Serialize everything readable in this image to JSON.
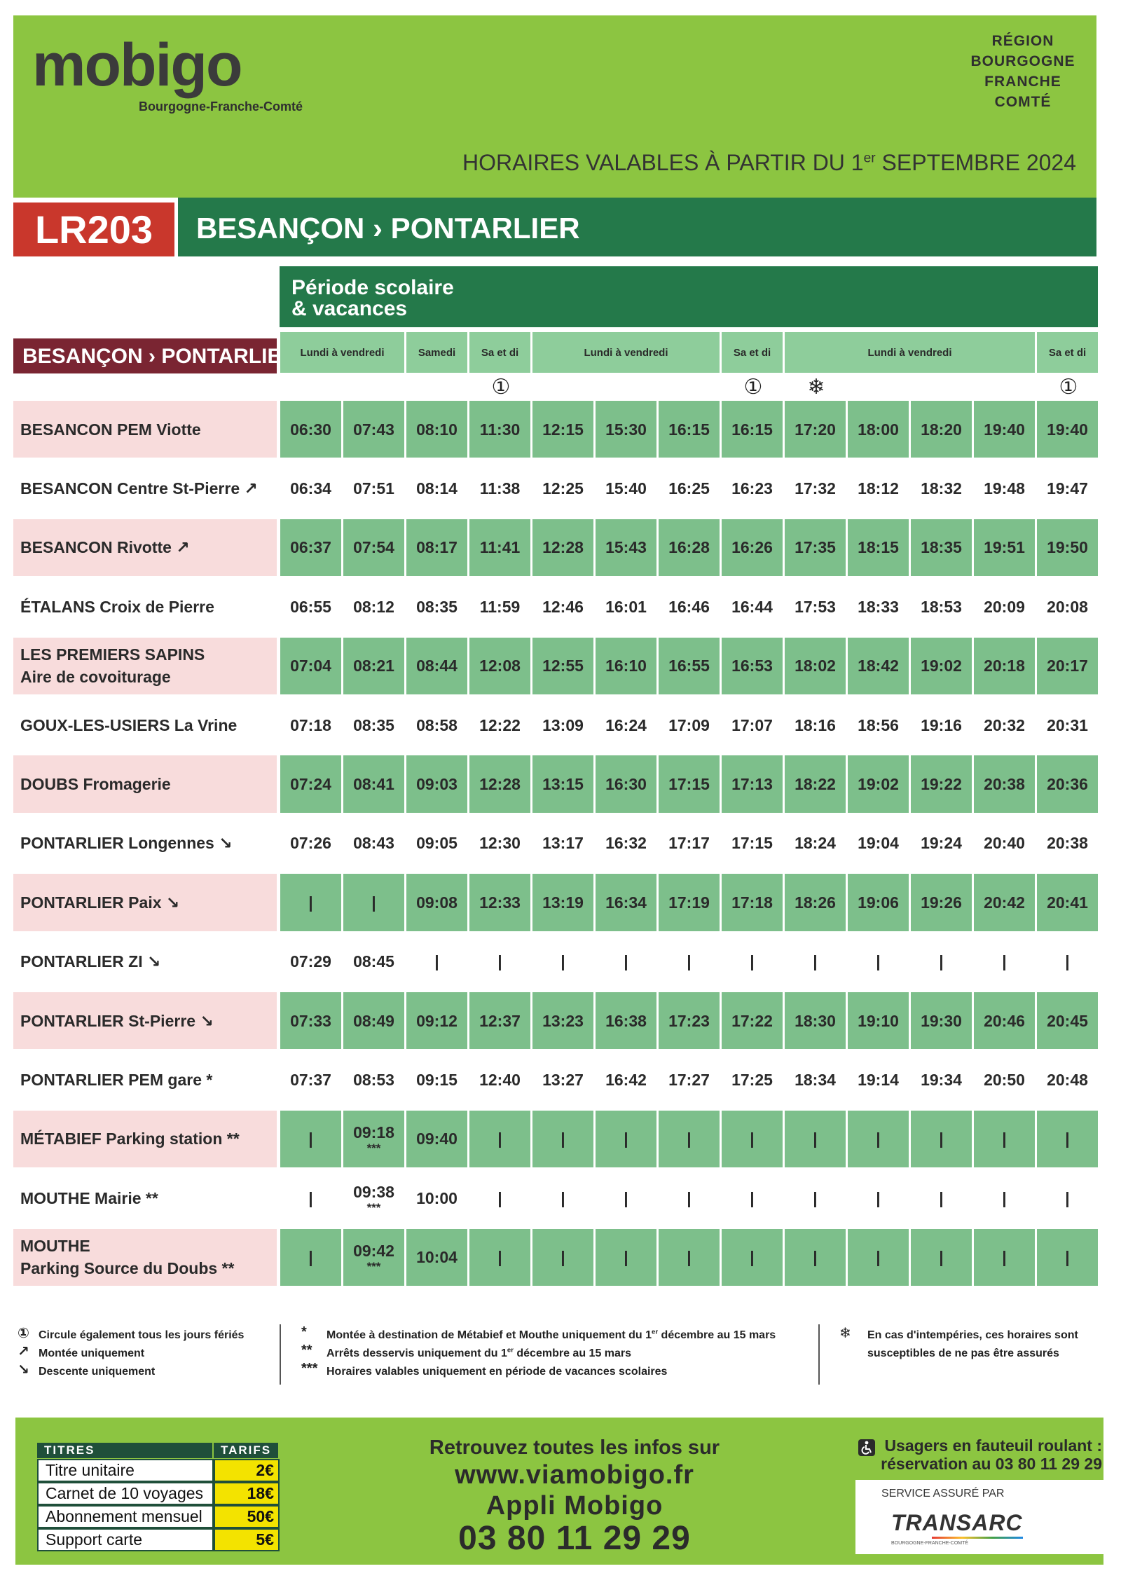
{
  "header": {
    "logo": "mobigo",
    "logo_subtitle": "Bourgogne-Franche-Comté",
    "region": [
      "RÉGION",
      "BOURGOGNE",
      "FRANCHE",
      "COMTÉ"
    ],
    "validity": [
      "HORAIRES VALABLES À PARTIR DU 1",
      {
        "sup": "er"
      },
      " SEPTEMBRE 2024"
    ]
  },
  "line": {
    "code": "LR203",
    "title": "BESANÇON › PONTARLIER"
  },
  "timetable": {
    "period": [
      "Période scolaire",
      "& vacances"
    ],
    "direction": "BESANÇON › PONTARLIER",
    "day_groups": [
      {
        "label": "Lundi à vendredi",
        "span": 2
      },
      {
        "label": "Samedi",
        "span": 1
      },
      {
        "label": "Sa et di",
        "span": 1
      },
      {
        "label": "Lundi à vendredi",
        "span": 3
      },
      {
        "label": "Sa et di",
        "span": 1
      },
      {
        "label": "Lundi à vendredi",
        "span": 4
      },
      {
        "label": "Sa et di",
        "span": 1
      }
    ],
    "column_notes": [
      null,
      null,
      null,
      "①",
      null,
      null,
      null,
      "①",
      "❄",
      null,
      null,
      null,
      "①"
    ],
    "stops": [
      {
        "name": [
          "BESANCON PEM Viotte"
        ],
        "times": [
          "06:30",
          "07:43",
          "08:10",
          "11:30",
          "12:15",
          "15:30",
          "16:15",
          "16:15",
          "17:20",
          "18:00",
          "18:20",
          "19:40",
          "19:40"
        ]
      },
      {
        "name": [
          "BESANCON Centre St-Pierre ↗"
        ],
        "times": [
          "06:34",
          "07:51",
          "08:14",
          "11:38",
          "12:25",
          "15:40",
          "16:25",
          "16:23",
          "17:32",
          "18:12",
          "18:32",
          "19:48",
          "19:47"
        ]
      },
      {
        "name": [
          "BESANCON Rivotte ↗"
        ],
        "times": [
          "06:37",
          "07:54",
          "08:17",
          "11:41",
          "12:28",
          "15:43",
          "16:28",
          "16:26",
          "17:35",
          "18:15",
          "18:35",
          "19:51",
          "19:50"
        ]
      },
      {
        "name": [
          "ÉTALANS Croix de Pierre"
        ],
        "times": [
          "06:55",
          "08:12",
          "08:35",
          "11:59",
          "12:46",
          "16:01",
          "16:46",
          "16:44",
          "17:53",
          "18:33",
          "18:53",
          "20:09",
          "20:08"
        ]
      },
      {
        "name": [
          "LES PREMIERS SAPINS",
          "Aire de covoiturage"
        ],
        "times": [
          "07:04",
          "08:21",
          "08:44",
          "12:08",
          "12:55",
          "16:10",
          "16:55",
          "16:53",
          "18:02",
          "18:42",
          "19:02",
          "20:18",
          "20:17"
        ]
      },
      {
        "name": [
          "GOUX-LES-USIERS La Vrine"
        ],
        "times": [
          "07:18",
          "08:35",
          "08:58",
          "12:22",
          "13:09",
          "16:24",
          "17:09",
          "17:07",
          "18:16",
          "18:56",
          "19:16",
          "20:32",
          "20:31"
        ]
      },
      {
        "name": [
          "DOUBS Fromagerie"
        ],
        "times": [
          "07:24",
          "08:41",
          "09:03",
          "12:28",
          "13:15",
          "16:30",
          "17:15",
          "17:13",
          "18:22",
          "19:02",
          "19:22",
          "20:38",
          "20:36"
        ]
      },
      {
        "name": [
          "PONTARLIER Longennes ↘"
        ],
        "times": [
          "07:26",
          "08:43",
          "09:05",
          "12:30",
          "13:17",
          "16:32",
          "17:17",
          "17:15",
          "18:24",
          "19:04",
          "19:24",
          "20:40",
          "20:38"
        ]
      },
      {
        "name": [
          "PONTARLIER Paix ↘"
        ],
        "times": [
          "|",
          "|",
          "09:08",
          "12:33",
          "13:19",
          "16:34",
          "17:19",
          "17:18",
          "18:26",
          "19:06",
          "19:26",
          "20:42",
          "20:41"
        ]
      },
      {
        "name": [
          "PONTARLIER ZI ↘"
        ],
        "times": [
          "07:29",
          "08:45",
          "|",
          "|",
          "|",
          "|",
          "|",
          "|",
          "|",
          "|",
          "|",
          "|",
          "|"
        ]
      },
      {
        "name": [
          "PONTARLIER St-Pierre ↘"
        ],
        "times": [
          "07:33",
          "08:49",
          "09:12",
          "12:37",
          "13:23",
          "16:38",
          "17:23",
          "17:22",
          "18:30",
          "19:10",
          "19:30",
          "20:46",
          "20:45"
        ]
      },
      {
        "name": [
          "PONTARLIER PEM gare *"
        ],
        "times": [
          "07:37",
          "08:53",
          "09:15",
          "12:40",
          "13:27",
          "16:42",
          "17:27",
          "17:25",
          "18:34",
          "19:14",
          "19:34",
          "20:50",
          "20:48"
        ]
      },
      {
        "name": [
          "MÉTABIEF Parking station **"
        ],
        "times": [
          "|",
          {
            "time": "09:18",
            "note": "***"
          },
          "09:40",
          "|",
          "|",
          "|",
          "|",
          "|",
          "|",
          "|",
          "|",
          "|",
          "|"
        ]
      },
      {
        "name": [
          "MOUTHE Mairie **"
        ],
        "times": [
          "|",
          {
            "time": "09:38",
            "note": "***"
          },
          "10:00",
          "|",
          "|",
          "|",
          "|",
          "|",
          "|",
          "|",
          "|",
          "|",
          "|"
        ]
      },
      {
        "name": [
          "MOUTHE",
          "Parking Source du Doubs **"
        ],
        "times": [
          "|",
          {
            "time": "09:42",
            "note": "***"
          },
          "10:04",
          "|",
          "|",
          "|",
          "|",
          "|",
          "|",
          "|",
          "|",
          "|",
          "|"
        ]
      }
    ]
  },
  "legend": [
    [
      {
        "symbol": "①",
        "text": [
          "Circule également tous les jours fériés"
        ]
      },
      {
        "symbol": "↗",
        "text": [
          "Montée uniquement"
        ]
      },
      {
        "symbol": "↘",
        "text": [
          "Descente uniquement"
        ]
      }
    ],
    [
      {
        "symbol": "*",
        "text": [
          "Montée à destination de Métabief et Mouthe uniquement du 1",
          {
            "sup": "er"
          },
          " décembre au 15 mars"
        ]
      },
      {
        "symbol": "**",
        "text": [
          "Arrêts desservis uniquement du 1",
          {
            "sup": "er"
          },
          " décembre au 15 mars"
        ]
      },
      {
        "symbol": "***",
        "text": [
          "Horaires valables uniquement en période de vacances scolaires"
        ]
      }
    ],
    [
      {
        "symbol": "❄",
        "text": [
          "En cas d'intempéries, ces horaires sont susceptibles de ne pas être assurés"
        ]
      }
    ]
  ],
  "footer": {
    "tariffs": {
      "headers": [
        "TITRES",
        "TARIFS"
      ],
      "rows": [
        [
          "Titre unitaire",
          "2€"
        ],
        [
          "Carnet de 10 voyages",
          "18€"
        ],
        [
          "Abonnement mensuel",
          "50€"
        ],
        [
          "Support carte",
          "5€"
        ]
      ]
    },
    "info": [
      "Retrouvez toutes les infos sur",
      "www.viamobigo.fr",
      "Appli Mobigo",
      "03 80 11 29 29"
    ],
    "accessibility": [
      "Usagers en fauteuil roulant :",
      "réservation au 03 80 11 29 29"
    ],
    "operator": {
      "label": "SERVICE ASSURÉ PAR",
      "name": "TRANSARC",
      "tagline": "BOURGOGNE-FRANCHE-COMTÉ"
    }
  }
}
